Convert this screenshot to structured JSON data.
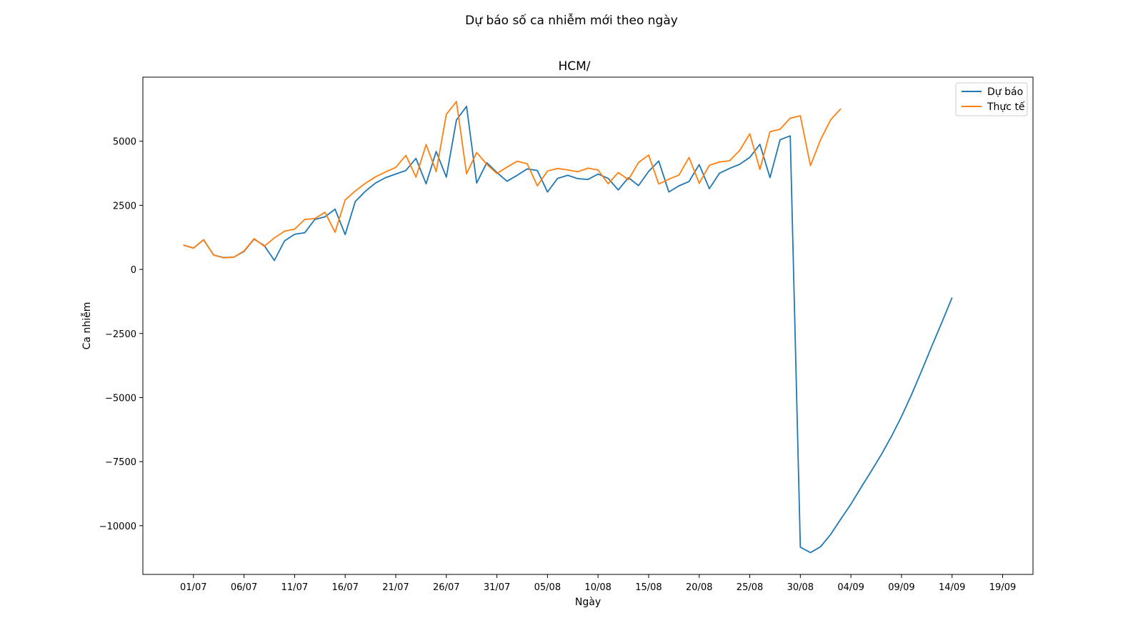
{
  "figure": {
    "suptitle": "Dự báo số ca nhiễm mới theo ngày"
  },
  "chart_data": {
    "type": "line",
    "title": "HCM/",
    "xlabel": "Ngày",
    "ylabel": "Ca nhiễm",
    "x_tick_labels": [
      "01/07",
      "06/07",
      "11/07",
      "16/07",
      "21/07",
      "26/07",
      "31/07",
      "05/08",
      "10/08",
      "15/08",
      "20/08",
      "25/08",
      "30/08",
      "04/09",
      "09/09",
      "14/09",
      "19/09"
    ],
    "x_ticks": [
      "2021-07-01",
      "2021-07-06",
      "2021-07-11",
      "2021-07-16",
      "2021-07-21",
      "2021-07-26",
      "2021-07-31",
      "2021-08-05",
      "2021-08-10",
      "2021-08-15",
      "2021-08-20",
      "2021-08-25",
      "2021-08-30",
      "2021-09-04",
      "2021-09-09",
      "2021-09-14",
      "2021-09-19"
    ],
    "xlim": [
      "2021-06-26",
      "2021-09-22"
    ],
    "y_ticks": [
      5000,
      2500,
      0,
      -2500,
      -5000,
      -7500,
      -10000
    ],
    "y_tick_labels": [
      "5000",
      "2500",
      "0",
      "−2500",
      "−5000",
      "−7500",
      "−10000"
    ],
    "ylim": [
      -11900,
      7500
    ],
    "legend_position": "top-right",
    "x_start": "2021-06-30",
    "series": [
      {
        "name": "Dự báo",
        "color": "#1f77b4",
        "values": [
          950,
          830,
          1150,
          560,
          460,
          480,
          700,
          1180,
          930,
          350,
          1110,
          1370,
          1430,
          1950,
          2050,
          2350,
          1360,
          2650,
          3050,
          3370,
          3580,
          3720,
          3860,
          4330,
          3340,
          4600,
          3600,
          5830,
          6360,
          3370,
          4160,
          3780,
          3440,
          3670,
          3920,
          3860,
          3020,
          3550,
          3670,
          3540,
          3510,
          3720,
          3550,
          3100,
          3580,
          3270,
          3820,
          4230,
          3020,
          3260,
          3430,
          4090,
          3150,
          3750,
          3940,
          4100,
          4370,
          4880,
          3580,
          5060,
          5210,
          -10840,
          -11050,
          -10820,
          -10340,
          -9740,
          -9160,
          -8510,
          -7880,
          -7230,
          -6520,
          -5740,
          -4880,
          -3950,
          -2990,
          -2060,
          -1100
        ]
      },
      {
        "name": "Thực tế",
        "color": "#ff7f0e",
        "values": [
          950,
          830,
          1160,
          560,
          450,
          480,
          720,
          1200,
          900,
          1230,
          1490,
          1570,
          1950,
          1980,
          2230,
          1450,
          2710,
          3060,
          3360,
          3610,
          3800,
          3980,
          4450,
          3600,
          4870,
          3820,
          6050,
          6550,
          3730,
          4560,
          4100,
          3740,
          3990,
          4220,
          4120,
          3260,
          3840,
          3940,
          3880,
          3810,
          3950,
          3880,
          3340,
          3780,
          3500,
          4170,
          4460,
          3330,
          3520,
          3680,
          4370,
          3360,
          4060,
          4190,
          4240,
          4640,
          5290,
          3900,
          5370,
          5470,
          5900,
          5990,
          4050,
          5060,
          5840,
          6270
        ]
      }
    ]
  }
}
